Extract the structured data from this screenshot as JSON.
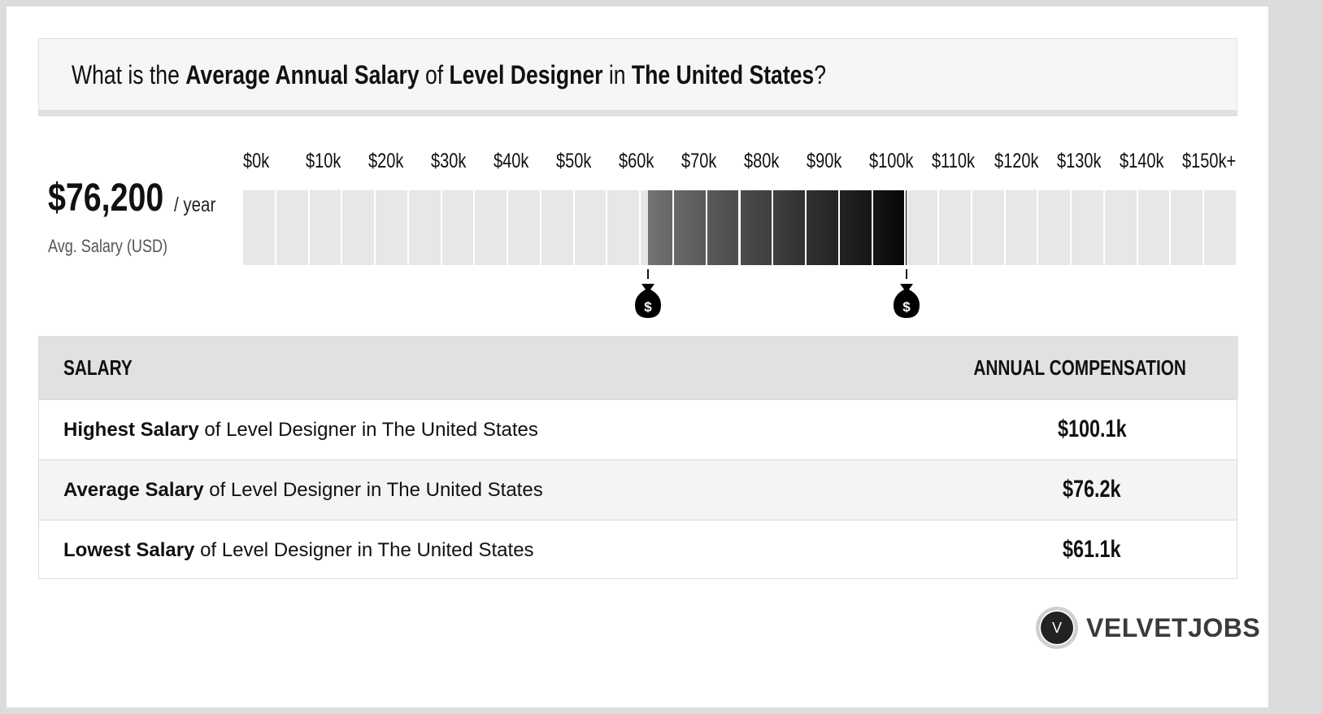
{
  "title": {
    "p1": "What is the ",
    "b1": "Average Annual Salary",
    "p2": " of ",
    "b2": "Level Designer",
    "p3": " in ",
    "b3": "The United States",
    "p4": "?"
  },
  "average": {
    "value": "$76,200",
    "unit": "/ year",
    "label": "Avg. Salary (USD)"
  },
  "chart_data": {
    "type": "range",
    "ticks": [
      "$0k",
      "$10k",
      "$20k",
      "$30k",
      "$40k",
      "$50k",
      "$60k",
      "$70k",
      "$80k",
      "$90k",
      "$100k",
      "$110k",
      "$120k",
      "$130k",
      "$140k",
      "$150k+"
    ],
    "axis_min": 0,
    "axis_max": 150000,
    "range_low": 61100,
    "range_high": 100100,
    "average": 76200,
    "colors": {
      "empty": "#e7e7e7",
      "range_start": "#6b6b6b",
      "range_end": "#000000"
    },
    "marker_icon": "money-bag-icon"
  },
  "table": {
    "header_left": "SALARY",
    "header_right": "ANNUAL COMPENSATION",
    "rows": [
      {
        "bold": "Highest Salary",
        "rest": " of Level Designer in The United States",
        "value": "$100.1k"
      },
      {
        "bold": "Average Salary",
        "rest": " of Level Designer in The United States",
        "value": "$76.2k"
      },
      {
        "bold": "Lowest Salary",
        "rest": " of Level Designer in The United States",
        "value": "$61.1k"
      }
    ]
  },
  "logo": {
    "mark": "V",
    "text": "VELVETJOBS"
  }
}
